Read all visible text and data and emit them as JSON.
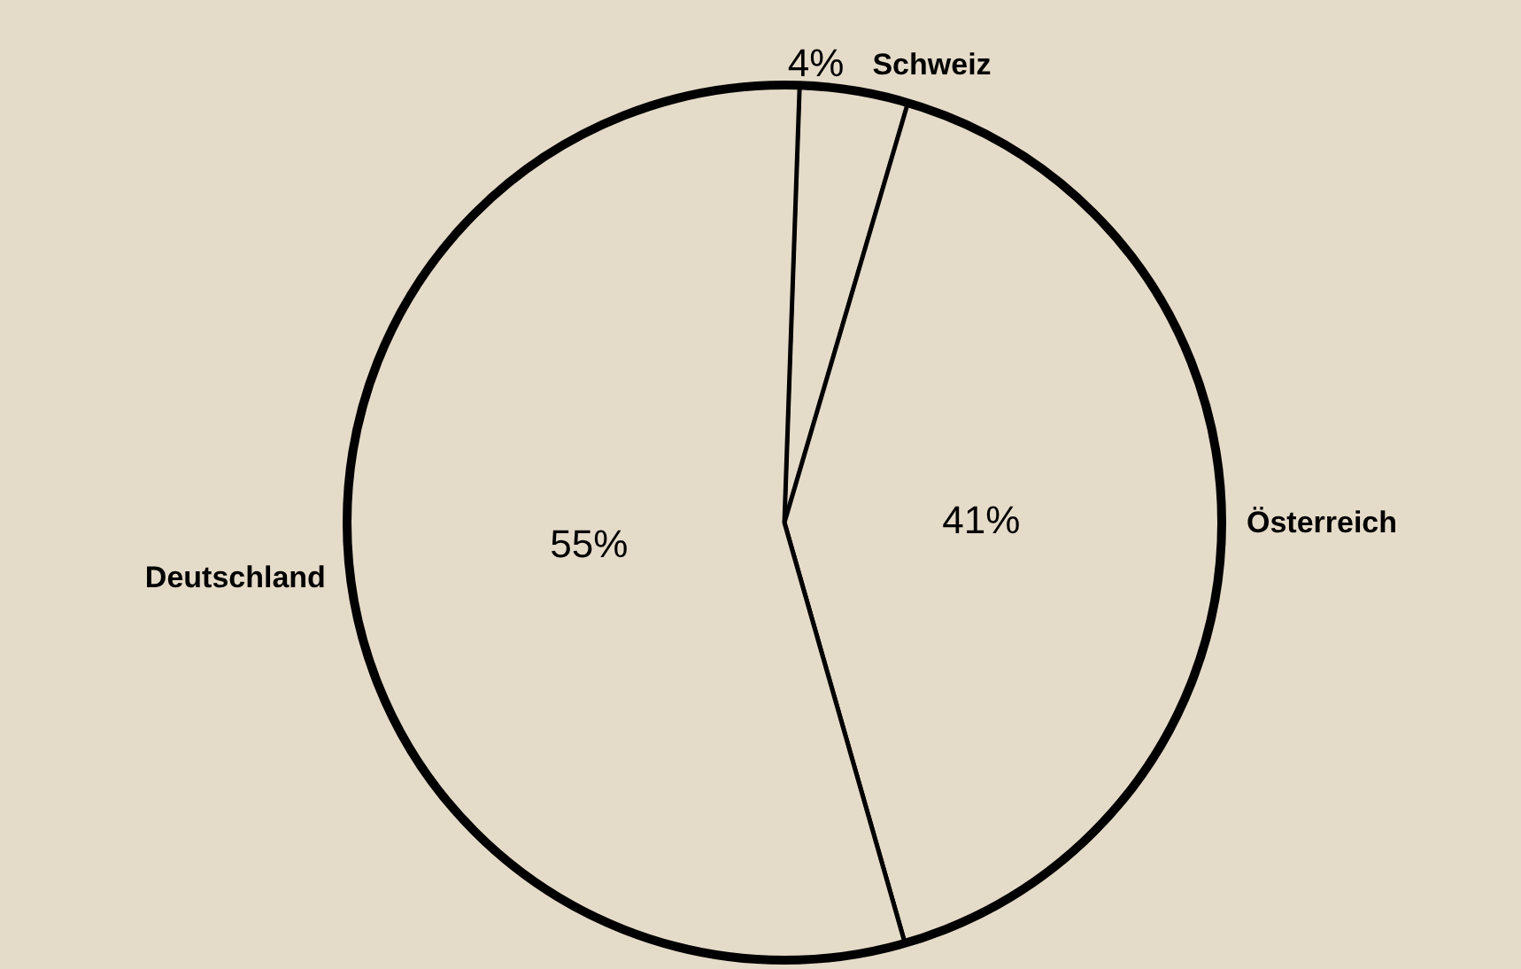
{
  "chart_data": {
    "type": "pie",
    "categories": [
      "Schweiz",
      "Österreich",
      "Deutschland"
    ],
    "values": [
      4,
      41,
      55
    ],
    "value_labels": [
      "4%",
      "41%",
      "55%"
    ],
    "colors": [
      "#e5dbc9",
      "#e5dbc9",
      "#e5dbc9"
    ]
  }
}
